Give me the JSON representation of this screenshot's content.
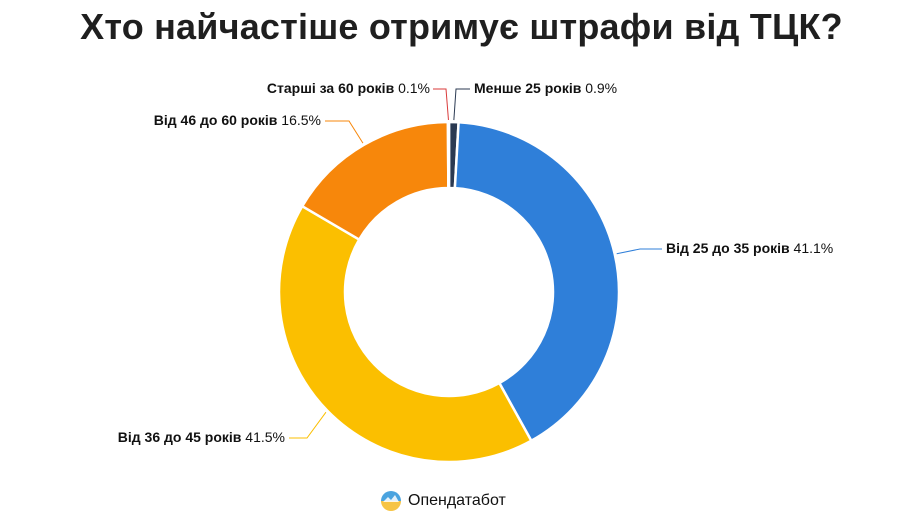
{
  "chart_data": {
    "type": "pie",
    "title": "Хто найчастіше отримує штрафи від ТЦК?",
    "categories": [
      "Менше 25 років",
      "Від 25 до 35 років",
      "Від 36 до 45 років",
      "Від 46 до 60 років",
      "Старші за 60 років"
    ],
    "values": [
      0.9,
      41.1,
      41.5,
      16.5,
      0.1
    ],
    "value_labels": [
      "0.9%",
      "41.1%",
      "41.5%",
      "16.5%",
      "0.1%"
    ],
    "colors": [
      "#2b3a52",
      "#2f7fd9",
      "#fbbf00",
      "#f7870b",
      "#d93a3a"
    ],
    "donut": true,
    "legend": "none"
  },
  "footer": {
    "brand": "Опендатабот"
  }
}
